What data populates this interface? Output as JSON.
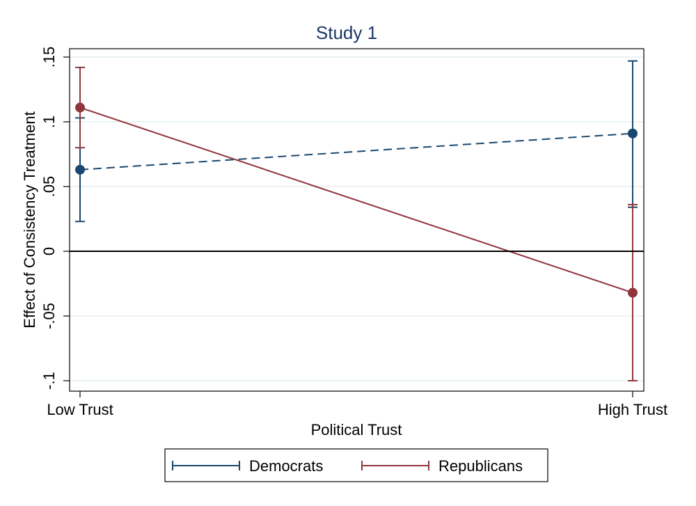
{
  "chart_data": {
    "type": "line",
    "title": "Study 1",
    "xlabel": "Political Trust",
    "ylabel": "Effect of Consistency Treatment",
    "categories": [
      "Low Trust",
      "High Trust"
    ],
    "ylim": [
      -0.1,
      0.15
    ],
    "yticks": [
      {
        "value": 0.15,
        "label": ".15"
      },
      {
        "value": 0.1,
        "label": ".1"
      },
      {
        "value": 0.05,
        "label": ".05"
      },
      {
        "value": 0,
        "label": "0"
      },
      {
        "value": -0.05,
        "label": "-.05"
      },
      {
        "value": -0.1,
        "label": "-.1"
      }
    ],
    "grid": true,
    "reference_line": 0,
    "legend_position": "bottom",
    "series": [
      {
        "name": "Democrats",
        "color": "#1a476f",
        "line_style": "dashed",
        "values": [
          0.063,
          0.091
        ],
        "ci_low": [
          0.023,
          0.034
        ],
        "ci_high": [
          0.103,
          0.147
        ]
      },
      {
        "name": "Republicans",
        "color": "#90353b",
        "line_style": "solid",
        "values": [
          0.111,
          -0.032
        ],
        "ci_low": [
          0.08,
          -0.1
        ],
        "ci_high": [
          0.142,
          0.036
        ]
      }
    ]
  }
}
